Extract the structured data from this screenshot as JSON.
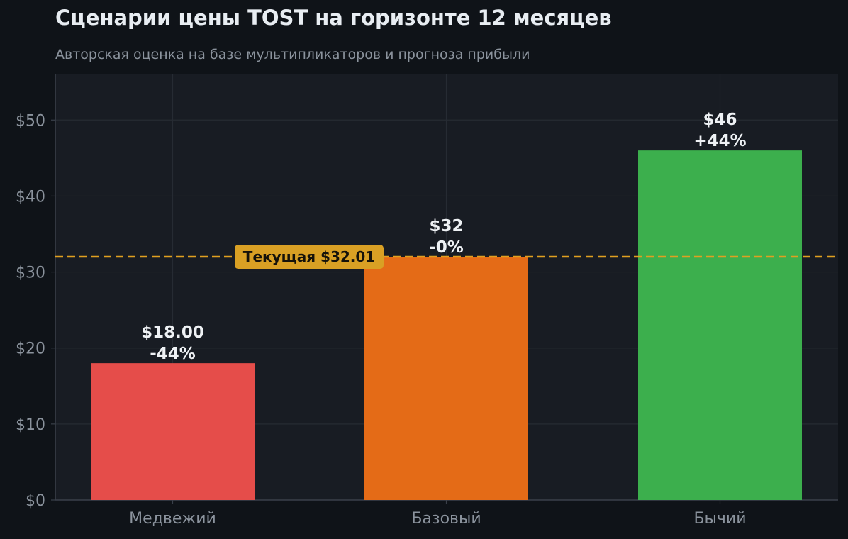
{
  "title": "Сценарии цены TOST на горизонте 12 месяцев",
  "subtitle": "Авторская оценка на базе мультипликаторов и прогноза прибыли",
  "colors": {
    "figure_bg": "#0f1318",
    "plot_bg": "#181c23",
    "grid": "#262b33",
    "tick_text": "#8b939d",
    "value_text": "#eef1f4",
    "reference_line": "#e0a020",
    "reference_label_bg": "#d9a024",
    "reference_label_text": "#15120a"
  },
  "chart_data": {
    "type": "bar",
    "categories": [
      "Медвежий",
      "Базовый",
      "Бычий"
    ],
    "values": [
      18.0,
      32.0,
      46.0
    ],
    "bar_colors": [
      "#e54d4a",
      "#e46b17",
      "#3caf4d"
    ],
    "value_labels": [
      "$18.00",
      "$32",
      "$46"
    ],
    "change_labels": [
      "-44%",
      "-0%",
      "+44%"
    ],
    "title": "Сценарии цены TOST на горизонте 12 месяцев",
    "subtitle": "Авторская оценка на базе мультипликаторов и прогноза прибыли",
    "xlabel": "",
    "ylabel": "",
    "ylim": [
      0,
      56
    ],
    "yticks": [
      0,
      10,
      20,
      30,
      40,
      50
    ],
    "ytick_labels": [
      "$0",
      "$10",
      "$20",
      "$30",
      "$40",
      "$50"
    ],
    "grid": true,
    "reference_line": {
      "value": 32.01,
      "label": "Текущая $32.01",
      "style": "dashed"
    }
  }
}
